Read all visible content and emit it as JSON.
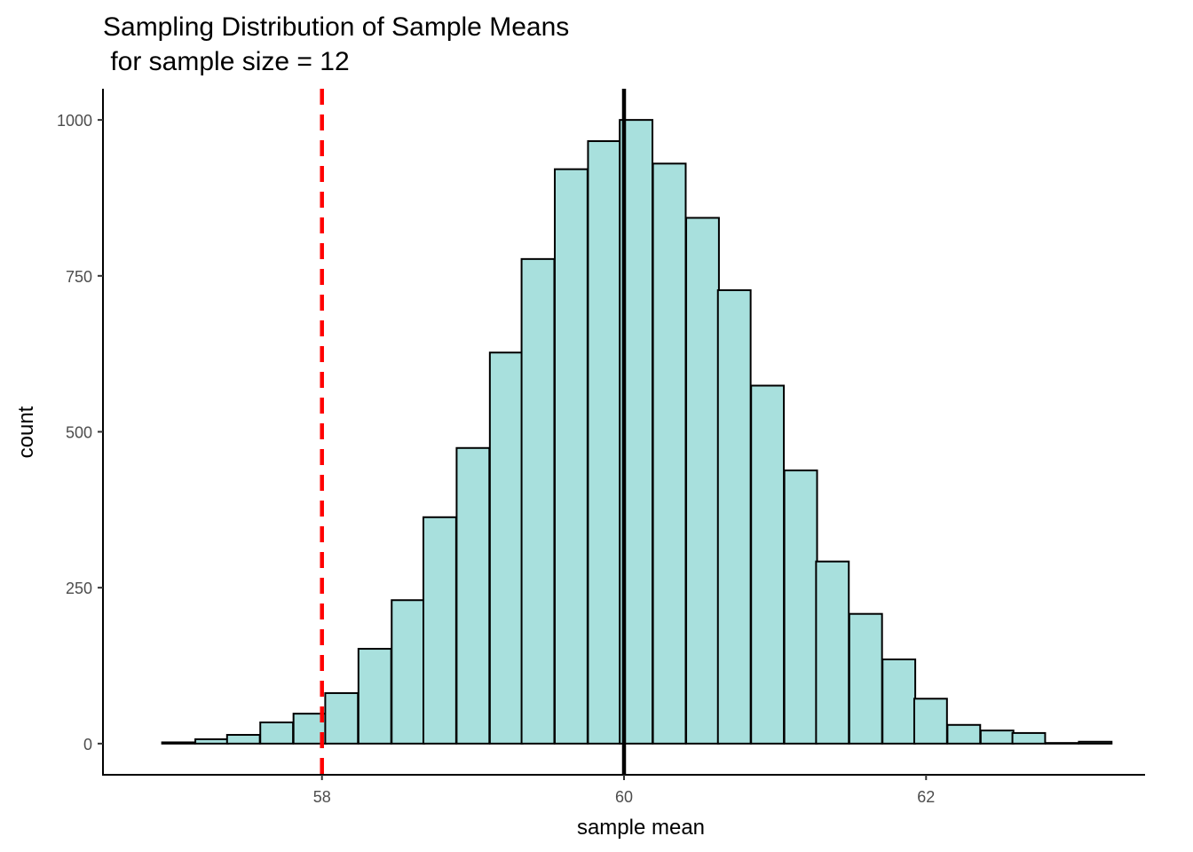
{
  "chart_data": {
    "type": "bar",
    "title_line1": "Sampling Distribution of Sample Means",
    "title_line2": " for sample size = 12",
    "xlabel": "sample mean",
    "ylabel": "count",
    "bin_width": 0.2167,
    "bin_centers": [
      56.83,
      57.05,
      57.27,
      57.48,
      57.7,
      57.92,
      58.13,
      58.35,
      58.57,
      58.78,
      59.0,
      59.22,
      59.43,
      59.65,
      59.87,
      60.08,
      60.3,
      60.52,
      60.73,
      60.95,
      61.17,
      61.38,
      61.6,
      61.82,
      62.03,
      62.25,
      62.47,
      62.68,
      62.9,
      63.12
    ],
    "values": [
      0,
      2,
      7,
      14,
      34,
      48,
      81,
      152,
      230,
      363,
      474,
      627,
      777,
      921,
      966,
      1000,
      930,
      843,
      727,
      574,
      438,
      292,
      208,
      135,
      72,
      30,
      21,
      17,
      1,
      3
    ],
    "xlim": [
      56.55,
      63.45
    ],
    "ylim": [
      -50,
      1050
    ],
    "xticks": [
      58,
      60,
      62
    ],
    "yticks": [
      0,
      250,
      500,
      750,
      1000
    ],
    "bar_fill": "#a8e0dd",
    "bar_stroke": "#000000",
    "vlines": [
      {
        "x": 60.0,
        "color": "#000000",
        "style": "solid"
      },
      {
        "x": 58.0,
        "color": "#ff0000",
        "style": "dashed"
      }
    ]
  }
}
